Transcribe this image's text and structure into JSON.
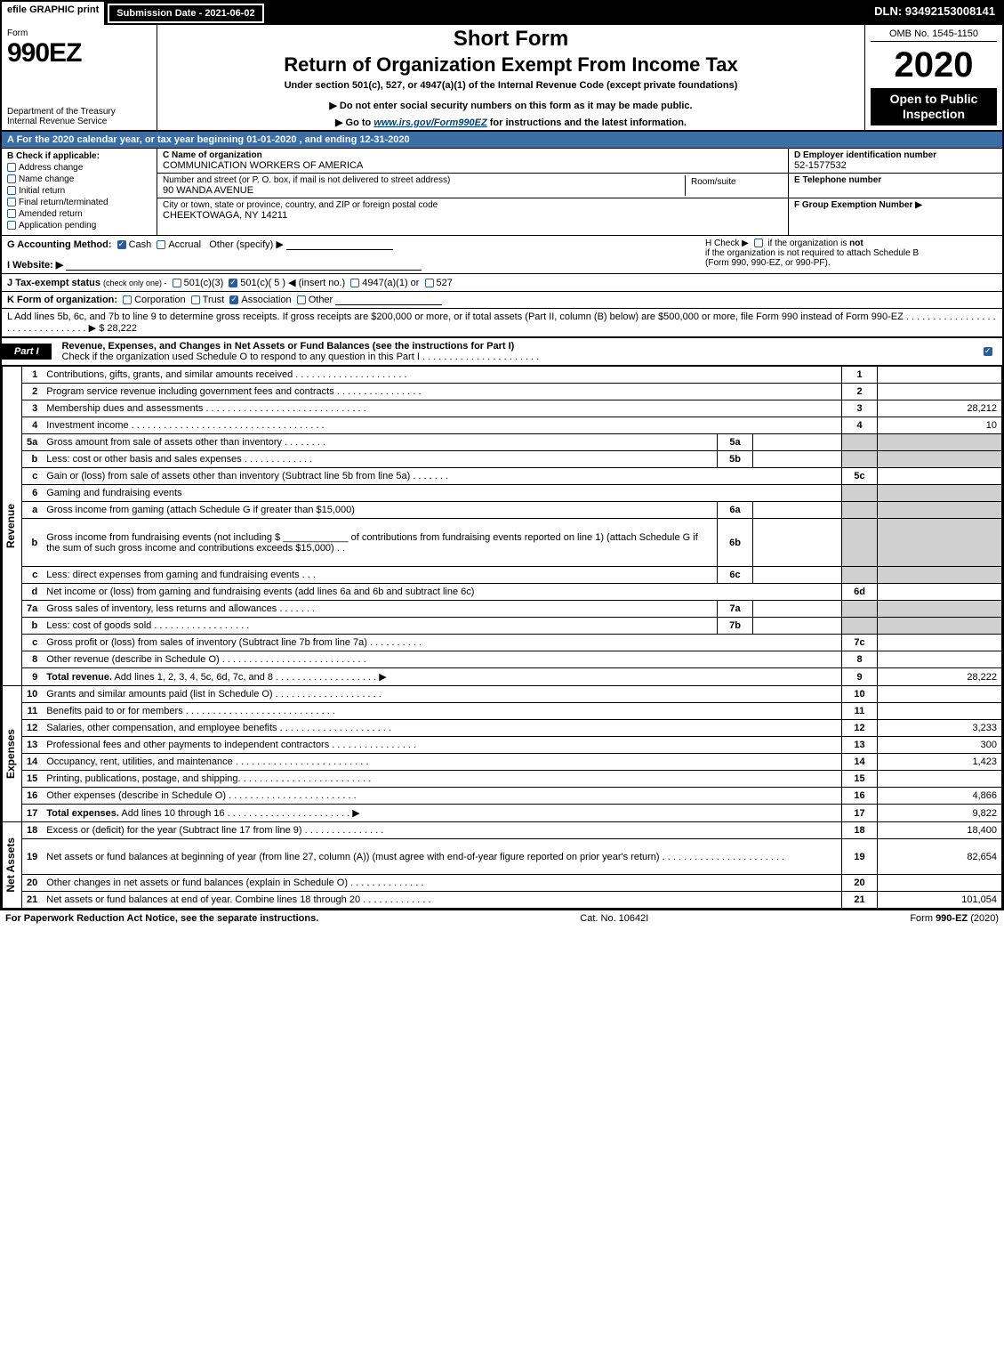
{
  "topbar": {
    "efile": "efile GRAPHIC print",
    "submission": "Submission Date - 2021-06-02",
    "dln": "DLN: 93492153008141"
  },
  "header": {
    "form_label": "Form",
    "form_number": "990EZ",
    "dept1": "Department of the Treasury",
    "dept2": "Internal Revenue Service",
    "short_form": "Short Form",
    "return_title": "Return of Organization Exempt From Income Tax",
    "under": "Under section 501(c), 527, or 4947(a)(1) of the Internal Revenue Code (except private foundations)",
    "donot": "▶ Do not enter social security numbers on this form as it may be made public.",
    "goto_pre": "▶ Go to ",
    "goto_link": "www.irs.gov/Form990EZ",
    "goto_post": " for instructions and the latest information.",
    "omb": "OMB No. 1545-1150",
    "year": "2020",
    "open": "Open to Public Inspection"
  },
  "period": {
    "text": "A For the 2020 calendar year, or tax year beginning 01-01-2020 , and ending 12-31-2020"
  },
  "boxB": {
    "title": "B Check if applicable:",
    "items": [
      "Address change",
      "Name change",
      "Initial return",
      "Final return/terminated",
      "Amended return",
      "Application pending"
    ]
  },
  "boxC": {
    "c_label": "C Name of organization",
    "c_name": "COMMUNICATION WORKERS OF AMERICA",
    "street_label": "Number and street (or P. O. box, if mail is not delivered to street address)",
    "street": "90 WANDA AVENUE",
    "room_label": "Room/suite",
    "city_label": "City or town, state or province, country, and ZIP or foreign postal code",
    "city": "CHEEKTOWAGA, NY  14211"
  },
  "boxD": {
    "d_label": "D Employer identification number",
    "ein": "52-1577532",
    "e_label": "E Telephone number",
    "f_label": "F Group Exemption Number  ▶"
  },
  "lineG": {
    "label": "G Accounting Method:",
    "cash": "Cash",
    "accrual": "Accrual",
    "other": "Other (specify) ▶"
  },
  "lineH": {
    "text1": "H  Check ▶",
    "text2": "if the organization is not required to attach Schedule B",
    "text3": "(Form 990, 990-EZ, or 990-PF)."
  },
  "lineI": {
    "label": "I Website: ▶"
  },
  "lineJ": {
    "label": "J Tax-exempt status",
    "hint": "(check only one) -",
    "opt1": "501(c)(3)",
    "opt2": "501(c)( 5 ) ◀ (insert no.)",
    "opt3": "4947(a)(1) or",
    "opt4": "527"
  },
  "lineK": {
    "label": "K Form of organization:",
    "corp": "Corporation",
    "trust": "Trust",
    "assoc": "Association",
    "other": "Other"
  },
  "lineL": {
    "text": "L Add lines 5b, 6c, and 7b to line 9 to determine gross receipts. If gross receipts are $200,000 or more, or if total assets (Part II, column (B) below) are $500,000 or more, file Form 990 instead of Form 990-EZ . . . . . . . . . . . . . . . . . . . . . . . . . . . . . . . . ▶ $ ",
    "amount": "28,222"
  },
  "part1": {
    "tab": "Part I",
    "title": "Revenue, Expenses, and Changes in Net Assets or Fund Balances (see the instructions for Part I)",
    "check": "Check if the organization used Schedule O to respond to any question in this Part I . . . . . . . . . . . . . . . . . . . . . ."
  },
  "sections": {
    "revenue": "Revenue",
    "expenses": "Expenses",
    "netassets": "Net Assets"
  },
  "rows": [
    {
      "n": "1",
      "desc": "Contributions, gifts, grants, and similar amounts received . . . . . . . . . . . . . . . . . . . . .",
      "rn": "1",
      "amt": ""
    },
    {
      "n": "2",
      "desc": "Program service revenue including government fees and contracts . . . . . . . . . . . . . . . .",
      "rn": "2",
      "amt": ""
    },
    {
      "n": "3",
      "desc": "Membership dues and assessments . . . . . . . . . . . . . . . . . . . . . . . . . . . . . .",
      "rn": "3",
      "amt": "28,212"
    },
    {
      "n": "4",
      "desc": "Investment income . . . . . . . . . . . . . . . . . . . . . . . . . . . . . . . . . . . .",
      "rn": "4",
      "amt": "10"
    },
    {
      "n": "5a",
      "desc": "Gross amount from sale of assets other than inventory . . . . . . . .",
      "sub": "5a",
      "grey": true
    },
    {
      "n": "b",
      "desc": "Less: cost or other basis and sales expenses . . . . . . . . . . . . .",
      "sub": "5b",
      "grey": true
    },
    {
      "n": "c",
      "desc": "Gain or (loss) from sale of assets other than inventory (Subtract line 5b from line 5a) . . . . . . .",
      "rn": "5c",
      "amt": ""
    },
    {
      "n": "6",
      "desc": "Gaming and fundraising events",
      "noright": true
    },
    {
      "n": "a",
      "desc": "Gross income from gaming (attach Schedule G if greater than $15,000)",
      "sub": "6a",
      "grey": true
    },
    {
      "n": "b",
      "desc": "Gross income from fundraising events (not including $ ____________ of contributions from fundraising events reported on line 1) (attach Schedule G if the sum of such gross income and contributions exceeds $15,000)    . .",
      "sub": "6b",
      "grey": true,
      "tall": true
    },
    {
      "n": "c",
      "desc": "Less: direct expenses from gaming and fundraising events    . . .",
      "sub": "6c",
      "grey": true
    },
    {
      "n": "d",
      "desc": "Net income or (loss) from gaming and fundraising events (add lines 6a and 6b and subtract line 6c)",
      "rn": "6d",
      "amt": ""
    },
    {
      "n": "7a",
      "desc": "Gross sales of inventory, less returns and allowances . . . . . . .",
      "sub": "7a",
      "grey": true
    },
    {
      "n": "b",
      "desc": "Less: cost of goods sold    . . . . . . . . . . . . . . . . . .",
      "sub": "7b",
      "grey": true
    },
    {
      "n": "c",
      "desc": "Gross profit or (loss) from sales of inventory (Subtract line 7b from line 7a) . . . . . . . . . .",
      "rn": "7c",
      "amt": ""
    },
    {
      "n": "8",
      "desc": "Other revenue (describe in Schedule O) . . . . . . . . . . . . . . . . . . . . . . . . . . .",
      "rn": "8",
      "amt": ""
    },
    {
      "n": "9",
      "desc": "Total revenue. Add lines 1, 2, 3, 4, 5c, 6d, 7c, and 8  . . . . . . . . . . . . . . . . . . .  ▶",
      "rn": "9",
      "amt": "28,222",
      "bold": true
    }
  ],
  "exp_rows": [
    {
      "n": "10",
      "desc": "Grants and similar amounts paid (list in Schedule O) . . . . . . . . . . . . . . . . . . . .",
      "rn": "10",
      "amt": ""
    },
    {
      "n": "11",
      "desc": "Benefits paid to or for members    . . . . . . . . . . . . . . . . . . . . . . . . . . . .",
      "rn": "11",
      "amt": ""
    },
    {
      "n": "12",
      "desc": "Salaries, other compensation, and employee benefits . . . . . . . . . . . . . . . . . . . . .",
      "rn": "12",
      "amt": "3,233"
    },
    {
      "n": "13",
      "desc": "Professional fees and other payments to independent contractors . . . . . . . . . . . . . . . .",
      "rn": "13",
      "amt": "300"
    },
    {
      "n": "14",
      "desc": "Occupancy, rent, utilities, and maintenance . . . . . . . . . . . . . . . . . . . . . . . . .",
      "rn": "14",
      "amt": "1,423"
    },
    {
      "n": "15",
      "desc": "Printing, publications, postage, and shipping. . . . . . . . . . . . . . . . . . . . . . . . .",
      "rn": "15",
      "amt": ""
    },
    {
      "n": "16",
      "desc": "Other expenses (describe in Schedule O)    . . . . . . . . . . . . . . . . . . . . . . . .",
      "rn": "16",
      "amt": "4,866"
    },
    {
      "n": "17",
      "desc": "Total expenses. Add lines 10 through 16    . . . . . . . . . . . . . . . . . . . . . . .  ▶",
      "rn": "17",
      "amt": "9,822",
      "bold": true
    }
  ],
  "na_rows": [
    {
      "n": "18",
      "desc": "Excess or (deficit) for the year (Subtract line 17 from line 9)    . . . . . . . . . . . . . . .",
      "rn": "18",
      "amt": "18,400"
    },
    {
      "n": "19",
      "desc": "Net assets or fund balances at beginning of year (from line 27, column (A)) (must agree with end-of-year figure reported on prior year's return) . . . . . . . . . . . . . . . . . . . . . . .",
      "rn": "19",
      "amt": "82,654",
      "tall": true
    },
    {
      "n": "20",
      "desc": "Other changes in net assets or fund balances (explain in Schedule O) . . . . . . . . . . . . . .",
      "rn": "20",
      "amt": ""
    },
    {
      "n": "21",
      "desc": "Net assets or fund balances at end of year. Combine lines 18 through 20 . . . . . . . . . . . . .",
      "rn": "21",
      "amt": "101,054"
    }
  ],
  "footer": {
    "left": "For Paperwork Reduction Act Notice, see the separate instructions.",
    "center": "Cat. No. 10642I",
    "right_pre": "Form ",
    "right_form": "990-EZ",
    "right_post": " (2020)"
  },
  "colors": {
    "blue_header": "#3b6ea5",
    "checkbox_blue": "#2b5b9c",
    "grey_cell": "#d0d0d0",
    "black": "#000000",
    "white": "#ffffff",
    "link": "#004080"
  },
  "typography": {
    "base_fontsize_pt": 8,
    "title_fontsize_pt": 18,
    "year_fontsize_pt": 30,
    "font_family": "Arial"
  }
}
